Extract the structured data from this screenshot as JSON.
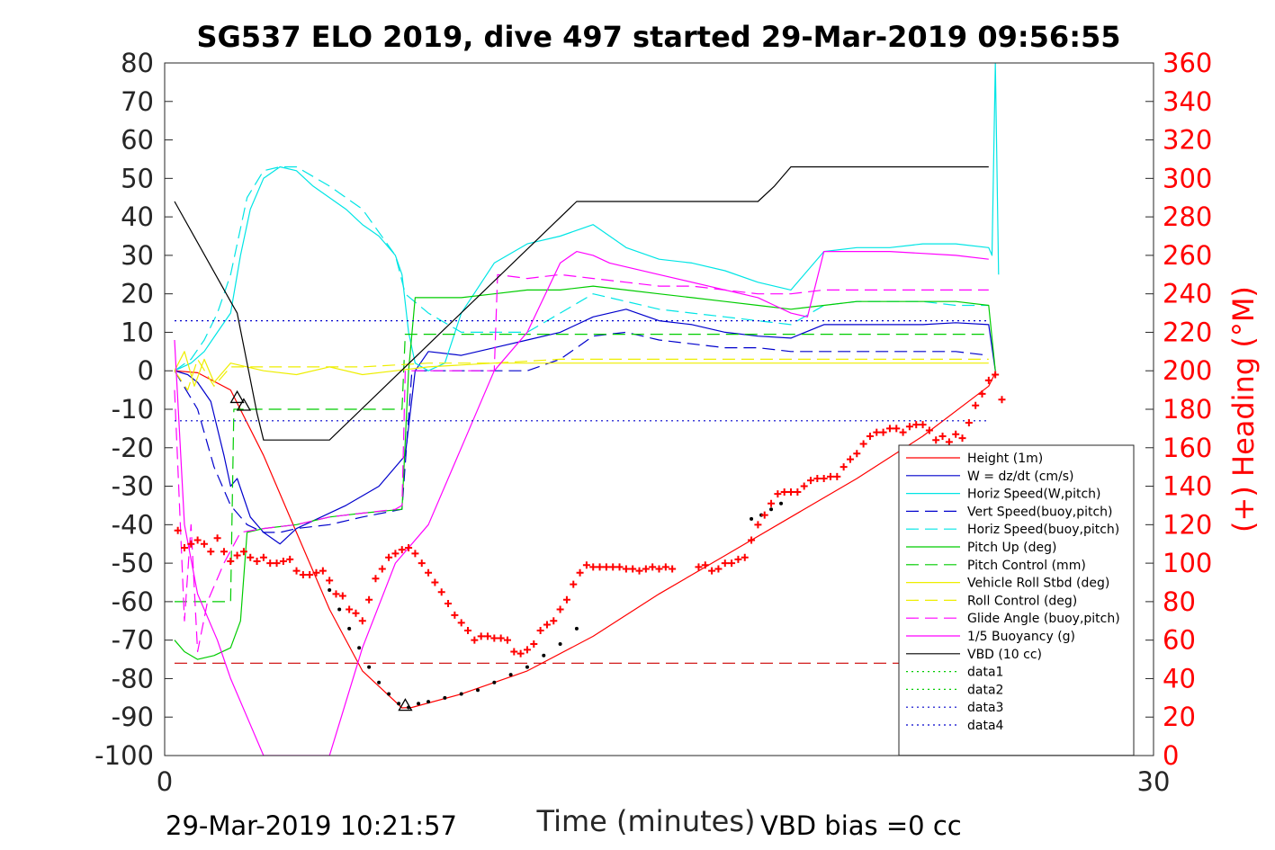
{
  "chart_data": {
    "type": "line",
    "title": "SG537 ELO 2019, dive 497 started 29-Mar-2019 09:56:55",
    "xlabel": "Time (minutes)",
    "ylabel": "",
    "y2label": "(+) Heading (°M)",
    "xlim": [
      0,
      30
    ],
    "ylim": [
      -100,
      80
    ],
    "y2lim": [
      0,
      360
    ],
    "x_ticks": [
      "0",
      "30"
    ],
    "y_ticks": [
      "80",
      "70",
      "60",
      "50",
      "40",
      "30",
      "20",
      "10",
      "0",
      "-10",
      "-20",
      "-30",
      "-40",
      "-50",
      "-60",
      "-70",
      "-80",
      "-90",
      "-100"
    ],
    "y2_ticks": [
      "360",
      "340",
      "320",
      "300",
      "280",
      "260",
      "240",
      "220",
      "200",
      "180",
      "160",
      "140",
      "120",
      "100",
      "80",
      "60",
      "40",
      "20",
      "0"
    ],
    "grid": false,
    "legend_position": "lower-right",
    "footer_left": "29-Mar-2019 10:21:57",
    "footer_right": "VBD bias =0 cc",
    "series": [
      {
        "name": "Height (1m)",
        "color": "#ff0000",
        "style": "solid",
        "x": [
          0.3,
          1.0,
          2.0,
          3.0,
          4.0,
          5.0,
          6.0,
          7.2,
          7.5,
          9,
          11,
          13,
          15,
          17,
          19,
          21,
          23,
          25,
          25.2
        ],
        "y": [
          0,
          -0.5,
          -5,
          -22,
          -42,
          -62,
          -78,
          -87.6,
          -87.5,
          -84,
          -78,
          -69,
          -58,
          -48,
          -38,
          -28,
          -17,
          -4,
          -0.5
        ]
      },
      {
        "name": "W = dz/dt (cm/s)",
        "color": "#0000cc",
        "style": "solid",
        "x": [
          0.3,
          0.7,
          1.0,
          1.4,
          1.6,
          1.8,
          2.0,
          2.2,
          2.6,
          3.0,
          3.5,
          4.0,
          4.5,
          5.5,
          6.5,
          7.3,
          7.6,
          8.0,
          9,
          10,
          11,
          12,
          13,
          14,
          15,
          16,
          17,
          18,
          19,
          20,
          21,
          22,
          23,
          24,
          25,
          25.2
        ],
        "y": [
          0,
          -1,
          -3,
          -8,
          -15,
          -22,
          -30,
          -28,
          -38,
          -42,
          -45,
          -41,
          -39,
          -35,
          -30,
          -22,
          0,
          5,
          4,
          6,
          8,
          10,
          14,
          16,
          13,
          12,
          10,
          9,
          8.5,
          12,
          12,
          12,
          12,
          12.5,
          12,
          0
        ]
      },
      {
        "name": "Horiz Speed(W,pitch)",
        "color": "#00e5e5",
        "style": "solid",
        "x": [
          0.3,
          0.8,
          1.2,
          1.6,
          2.0,
          2.3,
          2.6,
          3.0,
          3.5,
          4.0,
          4.5,
          5.0,
          5.5,
          6.0,
          6.5,
          7.0,
          7.2,
          7.4,
          7.6,
          8.0,
          8.5,
          9,
          10,
          11,
          12,
          13,
          14,
          15,
          16,
          17,
          18,
          19,
          20,
          21,
          22,
          23,
          24,
          25,
          25.1,
          25.2,
          25.3
        ],
        "y": [
          0,
          2,
          5,
          10,
          15,
          30,
          42,
          50,
          53,
          52,
          48,
          45,
          42,
          38,
          35,
          30,
          25,
          10,
          2,
          0,
          2,
          15,
          28,
          33,
          35,
          38,
          32,
          29,
          28,
          26,
          23,
          21,
          31,
          32,
          32,
          33,
          33,
          32,
          30,
          80,
          25
        ]
      },
      {
        "name": "Vert Speed(buoy,pitch)",
        "color": "#0000cc",
        "style": "dashed",
        "x": [
          0.3,
          1.0,
          1.5,
          2.0,
          2.5,
          3.0,
          3.5,
          4.0,
          5.0,
          6.0,
          7.2,
          7.5,
          8,
          9,
          10,
          11,
          12,
          13,
          14,
          15,
          16,
          17,
          18,
          19,
          20,
          21,
          22,
          23,
          24,
          25
        ],
        "y": [
          0,
          -10,
          -25,
          -35,
          -40,
          -42,
          -42,
          -41,
          -40,
          -38,
          -36,
          0,
          0,
          0,
          0,
          0,
          3,
          9,
          10,
          8,
          7,
          6,
          6,
          5,
          5,
          5,
          5,
          5,
          5,
          4
        ]
      },
      {
        "name": "Horiz Speed(buoy,pitch)",
        "color": "#00e5e5",
        "style": "dashed",
        "x": [
          0.3,
          0.8,
          1.2,
          1.6,
          2.0,
          2.5,
          3.0,
          3.5,
          4.0,
          5.0,
          6.0,
          7.0,
          7.3,
          8,
          9,
          10,
          11,
          12,
          13,
          14,
          15,
          16,
          17,
          18,
          19,
          20,
          21,
          22,
          23,
          24,
          25
        ],
        "y": [
          0,
          3,
          8,
          15,
          25,
          45,
          52,
          53,
          53,
          48,
          42,
          30,
          20,
          15,
          10,
          10,
          10,
          15,
          20,
          18,
          16,
          15,
          14,
          13,
          12,
          17,
          18,
          18,
          18,
          17,
          17
        ]
      },
      {
        "name": "Pitch Up (deg)",
        "color": "#00cc00",
        "style": "solid",
        "x": [
          0.3,
          0.6,
          1.0,
          1.5,
          2.0,
          2.3,
          2.5,
          3.0,
          4.0,
          5.0,
          6.0,
          7.2,
          7.4,
          7.6,
          8,
          9,
          10,
          11,
          12,
          13,
          14,
          15,
          16,
          17,
          18,
          19,
          20,
          21,
          22,
          23,
          24,
          25,
          25.2
        ],
        "y": [
          -70,
          -73,
          -75,
          -74,
          -72,
          -65,
          -42,
          -41,
          -40,
          -38,
          -37,
          -36,
          0,
          19,
          19,
          19,
          20,
          21,
          21,
          22,
          21,
          20,
          19,
          18,
          17,
          16,
          17,
          18,
          18,
          18,
          18,
          17,
          0
        ]
      },
      {
        "name": "Pitch Control (mm)",
        "color": "#00cc00",
        "style": "dashed",
        "x": [
          0.3,
          2.0,
          2.1,
          7.2,
          7.3,
          25
        ],
        "y": [
          -60,
          -60,
          -10,
          -10,
          9.5,
          9.5
        ]
      },
      {
        "name": "Vehicle Roll Stbd (deg)",
        "color": "#eeee00",
        "style": "solid",
        "x": [
          0.3,
          0.6,
          0.9,
          1.2,
          1.5,
          2.0,
          3,
          4,
          5,
          6,
          7,
          8,
          10,
          12,
          14,
          16,
          18,
          20,
          22,
          24,
          25
        ],
        "y": [
          0,
          5,
          -4,
          3,
          -3,
          2,
          0,
          -1,
          1,
          -1,
          0,
          1,
          2,
          2,
          2,
          2,
          2,
          2,
          2,
          2,
          2
        ]
      },
      {
        "name": "Roll Control (deg)",
        "color": "#eeee00",
        "style": "dashed",
        "x": [
          0.3,
          0.7,
          1.0,
          1.5,
          2.0,
          4,
          6,
          8,
          10,
          12,
          14,
          16,
          18,
          20,
          22,
          24,
          25
        ],
        "y": [
          0,
          -5,
          3,
          -4,
          1,
          1,
          1,
          2,
          2,
          3,
          3,
          3,
          3,
          3,
          3,
          3,
          3
        ]
      },
      {
        "name": "Glide Angle (buoy,pitch)",
        "color": "#ff00ff",
        "style": "dashed",
        "x": [
          0.3,
          0.6,
          0.8,
          1.0,
          1.3,
          1.8,
          2.3,
          3,
          4,
          5,
          6,
          7,
          7.2,
          7.3,
          7.4,
          8,
          9,
          10,
          10.1,
          11,
          12,
          13,
          14,
          15,
          16,
          17,
          18,
          19,
          20,
          21,
          22,
          23,
          24,
          25
        ],
        "y": [
          -5,
          -65,
          -40,
          -73,
          -60,
          -50,
          -42,
          -41,
          -40,
          -38,
          -37,
          -36,
          -35,
          0,
          0,
          0,
          0,
          0,
          25,
          24,
          25,
          24,
          23,
          22,
          22,
          21,
          20,
          20,
          21,
          21,
          21,
          21,
          21,
          21
        ]
      },
      {
        "name": "1/5 Buoyancy (g)",
        "color": "#ff00ff",
        "style": "solid",
        "x": [
          0.3,
          0.6,
          1.0,
          1.6,
          2.0,
          2.5,
          3,
          5,
          6,
          7,
          8,
          9,
          10,
          11,
          12,
          12.5,
          13,
          13.5,
          15,
          18,
          18.5,
          19,
          19.5,
          20,
          22,
          24,
          25
        ],
        "y": [
          8,
          -40,
          -58,
          -70,
          -80,
          -90,
          -100,
          -100,
          -72,
          -50,
          -40,
          -20,
          0,
          10,
          28,
          31,
          30,
          28,
          25,
          19,
          17,
          15,
          14,
          31,
          31,
          30,
          29
        ]
      },
      {
        "name": "VBD (10 cc)",
        "color": "#000000",
        "style": "solid",
        "x": [
          0.3,
          2.0,
          2.2,
          2.8,
          3.0,
          4.0,
          5.0,
          7.3,
          12.5,
          18.0,
          18.5,
          19.0,
          25.0
        ],
        "y": [
          44,
          18,
          15,
          -11,
          -18,
          -18,
          -18,
          1,
          44,
          44,
          48,
          53,
          53
        ]
      },
      {
        "name": "data1",
        "color": "#00cc00",
        "style": "dotted",
        "x": [],
        "y": []
      },
      {
        "name": "data2",
        "color": "#00cc00",
        "style": "dotted",
        "x": [],
        "y": []
      },
      {
        "name": "data3",
        "color": "#0000cc",
        "style": "dotted",
        "x": [
          0.3,
          25
        ],
        "y": [
          13,
          13
        ]
      },
      {
        "name": "data4",
        "color": "#0000cc",
        "style": "dotted",
        "x": [
          0.3,
          25
        ],
        "y": [
          -13,
          -13
        ]
      }
    ],
    "extra_lines": [
      {
        "color": "#cc0000",
        "style": "dashed",
        "x": [
          0.3,
          25
        ],
        "y": [
          -76,
          -76
        ]
      }
    ],
    "depth_samples": {
      "color": "#000000",
      "x": [
        5.0,
        5.3,
        5.6,
        5.9,
        6.2,
        6.5,
        6.8,
        7.1,
        7.4,
        7.7,
        8.0,
        8.5,
        9.0,
        9.5,
        10.0,
        10.5,
        11.0,
        11.5,
        12.0,
        12.5,
        17.8,
        18.1,
        18.4,
        18.7
      ],
      "y": [
        -57,
        -62,
        -67,
        -72,
        -77,
        -81,
        -84,
        -86.5,
        -87.5,
        -86.5,
        -86,
        -85,
        -84,
        -83,
        -81,
        -79,
        -77,
        -74,
        -71,
        -67,
        -38.5,
        -37.5,
        -36,
        -34.5
      ]
    },
    "markers": [
      {
        "symbol": "triangle",
        "x": [
          2.2,
          2.4,
          7.3
        ],
        "y": [
          -7,
          -9,
          -87
        ]
      }
    ],
    "heading": {
      "name": "Heading",
      "color": "#ff0000",
      "marker": "plus",
      "x": [
        0.4,
        0.6,
        0.8,
        1.0,
        1.2,
        1.4,
        1.6,
        1.8,
        2.0,
        2.2,
        2.4,
        2.6,
        2.8,
        3.0,
        3.2,
        3.4,
        3.6,
        3.8,
        4.0,
        4.2,
        4.4,
        4.6,
        4.8,
        5.0,
        5.2,
        5.4,
        5.6,
        5.8,
        6.0,
        6.2,
        6.4,
        6.6,
        6.8,
        7.0,
        7.2,
        7.4,
        7.6,
        7.8,
        8.0,
        8.2,
        8.4,
        8.6,
        8.8,
        9.0,
        9.2,
        9.4,
        9.6,
        9.8,
        10.0,
        10.2,
        10.4,
        10.6,
        10.8,
        11.0,
        11.2,
        11.4,
        11.6,
        11.8,
        12.0,
        12.2,
        12.4,
        12.6,
        12.8,
        13.0,
        13.2,
        13.4,
        13.6,
        13.8,
        14.0,
        14.2,
        14.4,
        14.6,
        14.8,
        15.0,
        15.2,
        15.4,
        16.2,
        16.4,
        16.6,
        16.8,
        17.0,
        17.2,
        17.4,
        17.6,
        17.8,
        18.0,
        18.2,
        18.4,
        18.6,
        18.8,
        19.0,
        19.2,
        19.4,
        19.6,
        19.8,
        20.0,
        20.2,
        20.4,
        20.6,
        20.8,
        21.0,
        21.2,
        21.4,
        21.6,
        21.8,
        22.0,
        22.2,
        22.4,
        22.6,
        22.8,
        23.0,
        23.2,
        23.4,
        23.6,
        23.8,
        24.0,
        24.2,
        24.4,
        24.6,
        24.8,
        25.0,
        25.2,
        25.4
      ],
      "y": [
        117,
        108,
        110,
        112,
        110,
        106,
        113,
        106,
        101,
        104,
        106,
        103,
        101,
        103,
        100,
        100,
        101,
        102,
        96,
        94,
        94,
        95,
        96,
        91,
        84,
        83,
        76,
        74,
        70,
        81,
        92,
        97,
        103,
        105,
        107,
        108,
        105,
        100,
        95,
        90,
        85,
        79,
        73,
        69,
        65,
        60,
        62,
        62,
        61,
        61,
        60,
        54,
        53,
        55,
        58,
        65,
        68,
        70,
        76,
        81,
        89,
        95,
        99,
        98,
        98,
        98,
        98,
        98,
        97,
        97,
        96,
        97,
        98,
        97,
        98,
        97,
        98,
        99,
        96,
        97,
        100,
        100,
        102,
        103,
        112,
        120,
        125,
        131,
        136,
        137,
        137,
        137,
        140,
        143,
        144,
        144,
        145,
        145,
        150,
        154,
        157,
        162,
        166,
        168,
        168,
        170,
        170,
        168,
        171,
        172,
        172,
        169,
        164,
        166,
        163,
        167,
        165,
        173,
        182,
        188,
        195,
        198,
        185
      ]
    }
  }
}
